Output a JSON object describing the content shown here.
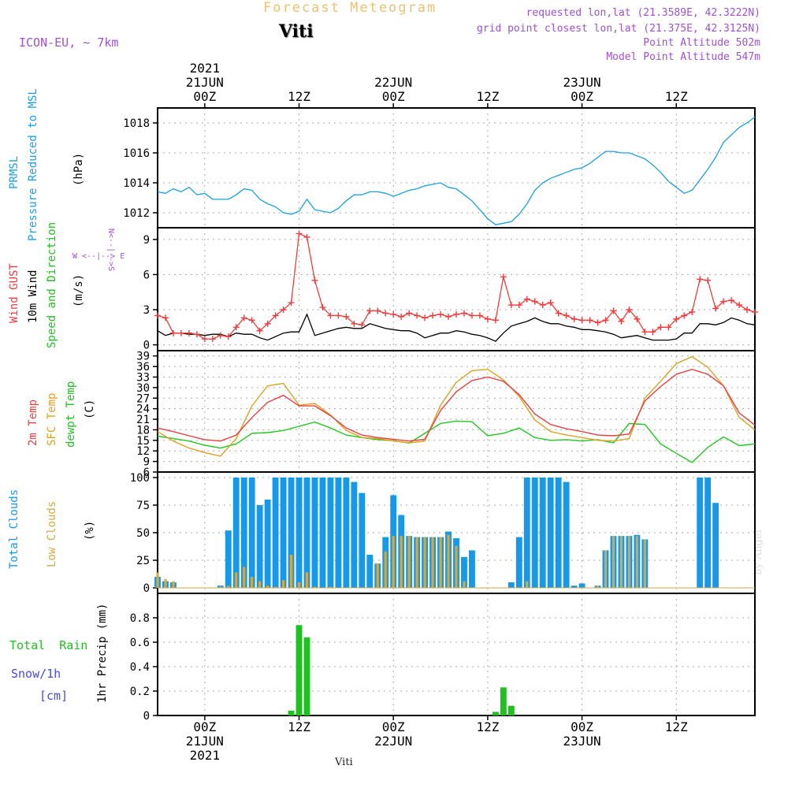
{
  "header": {
    "title": "Forecast Meteogram",
    "location": "Viti",
    "model": "ICON-EU, ~ 7km",
    "requested": "requested lon,lat (21.3589E, 42.3222N)",
    "gridpoint": "grid point closest lon,lat (21.375E, 42.3125N)",
    "point_alt": "Point Altitude 502m",
    "model_alt": "Model Point Altitude 547m",
    "footer": "Viti",
    "watermark": "by Angel"
  },
  "time_axis": {
    "top_labels": [
      {
        "hour": 6,
        "lines": [
          "2021",
          "21JUN",
          "00Z"
        ]
      },
      {
        "hour": 18,
        "lines": [
          "12Z"
        ]
      },
      {
        "hour": 30,
        "lines": [
          "22JUN",
          "00Z"
        ]
      },
      {
        "hour": 42,
        "lines": [
          "12Z"
        ]
      },
      {
        "hour": 54,
        "lines": [
          "23JUN",
          "00Z"
        ]
      },
      {
        "hour": 66,
        "lines": [
          "12Z"
        ]
      }
    ],
    "bottom_labels": [
      {
        "hour": 6,
        "lines": [
          "00Z",
          "21JUN",
          "2021"
        ]
      },
      {
        "hour": 18,
        "lines": [
          "12Z"
        ]
      },
      {
        "hour": 30,
        "lines": [
          "00Z",
          "22JUN"
        ]
      },
      {
        "hour": 42,
        "lines": [
          "12Z"
        ]
      },
      {
        "hour": 54,
        "lines": [
          "00Z",
          "23JUN"
        ]
      },
      {
        "hour": 66,
        "lines": [
          "12Z"
        ]
      }
    ]
  },
  "legend": {
    "pressure": {
      "lines": [
        "PRMSL",
        "Pressure Reduced to MSL"
      ],
      "unit": "(hPa)"
    },
    "wind": {
      "gust": "Wind GUST",
      "wind10": "10m Wind",
      "speed": "Speed and Direction",
      "unit": "(m/s)",
      "compass_ns": "N<--|-->S",
      "compass_we": "W <--|--> E"
    },
    "temp": {
      "t2m": "2m Temp",
      "sfc": "SFC Temp",
      "dew": "dewpt Temp",
      "unit": "(C)"
    },
    "clouds": {
      "total": "Total Clouds",
      "low": "Low Clouds",
      "unit": "(%)"
    },
    "precip": {
      "rain": "Total  Rain",
      "snow": "Snow/1h",
      "snow_unit": "[cm]",
      "ylabel": "1hr Precip (mm)"
    }
  },
  "colors": {
    "pressure": "#1aa0e0",
    "gust": "#f03c3c",
    "wind": "#000000",
    "t2m": "#e84040",
    "sfc": "#e0a020",
    "dew": "#20c820",
    "total_cloud": "#1898e8",
    "low_cloud": "#d8a840",
    "rain": "#20c020",
    "snow": "#4848e8",
    "header_purple": "#a050d0",
    "title_gold": "#f0c070"
  },
  "chart_data": [
    {
      "type": "line",
      "name": "pressure",
      "x": [
        0,
        1,
        2,
        3,
        4,
        5,
        6,
        7,
        8,
        9,
        10,
        11,
        12,
        13,
        14,
        15,
        16,
        17,
        18,
        19,
        20,
        21,
        22,
        23,
        24,
        25,
        26,
        27,
        28,
        29,
        30,
        31,
        32,
        33,
        34,
        35,
        36,
        37,
        38,
        39,
        40,
        41,
        42,
        43,
        44,
        45,
        46,
        47,
        48,
        49,
        50,
        51,
        52,
        53,
        54,
        55,
        56,
        57,
        58,
        59,
        60,
        61,
        62,
        63,
        64,
        65,
        66,
        67,
        68,
        69,
        70,
        71,
        72,
        73,
        74,
        75,
        76
      ],
      "y": [
        1013.4,
        1013.3,
        1013.6,
        1013.4,
        1013.7,
        1013.2,
        1013.3,
        1012.9,
        1012.9,
        1012.9,
        1013.2,
        1013.6,
        1013.5,
        1012.9,
        1012.6,
        1012.4,
        1012.0,
        1011.9,
        1012.1,
        1012.9,
        1012.2,
        1012.1,
        1012.0,
        1012.3,
        1012.8,
        1013.2,
        1013.2,
        1013.4,
        1013.4,
        1013.3,
        1013.1,
        1013.3,
        1013.5,
        1013.6,
        1013.8,
        1013.9,
        1014.0,
        1013.7,
        1013.6,
        1013.2,
        1012.8,
        1012.2,
        1011.6,
        1011.2,
        1011.3,
        1011.4,
        1011.9,
        1012.6,
        1013.5,
        1014.0,
        1014.3,
        1014.5,
        1014.7,
        1014.9,
        1015.0,
        1015.3,
        1015.7,
        1016.1,
        1016.1,
        1016.0,
        1016.0,
        1015.8,
        1015.6,
        1015.2,
        1014.7,
        1014.1,
        1013.7,
        1013.3,
        1013.5,
        1014.2,
        1014.9,
        1015.7,
        1016.7,
        1017.2,
        1017.7,
        1018.0,
        1018.4
      ],
      "ylim": [
        1011,
        1019
      ],
      "yticks": [
        1012,
        1014,
        1016,
        1018
      ]
    },
    {
      "type": "line",
      "name": "wind",
      "x": [
        0,
        1,
        2,
        3,
        4,
        5,
        6,
        7,
        8,
        9,
        10,
        11,
        12,
        13,
        14,
        15,
        16,
        17,
        18,
        19,
        20,
        21,
        22,
        23,
        24,
        25,
        26,
        27,
        28,
        29,
        30,
        31,
        32,
        33,
        34,
        35,
        36,
        37,
        38,
        39,
        40,
        41,
        42,
        43,
        44,
        45,
        46,
        47,
        48,
        49,
        50,
        51,
        52,
        53,
        54,
        55,
        56,
        57,
        58,
        59,
        60,
        61,
        62,
        63,
        64,
        65,
        66,
        67,
        68,
        69,
        70,
        71,
        72,
        73,
        74,
        75,
        76
      ],
      "gust": [
        2.5,
        2.3,
        1.0,
        1.0,
        1.0,
        0.9,
        0.5,
        0.5,
        0.8,
        0.7,
        1.5,
        2.3,
        2.1,
        1.2,
        1.8,
        2.5,
        3.0,
        3.6,
        9.5,
        9.2,
        5.5,
        3.2,
        2.5,
        2.5,
        2.4,
        1.8,
        1.7,
        2.9,
        2.9,
        2.7,
        2.6,
        2.4,
        2.7,
        2.5,
        2.3,
        2.5,
        2.6,
        2.4,
        2.6,
        2.7,
        2.5,
        2.5,
        2.2,
        2.1,
        5.8,
        3.4,
        3.4,
        3.9,
        3.7,
        3.4,
        3.6,
        2.7,
        2.5,
        2.2,
        2.1,
        2.1,
        1.9,
        2.1,
        2.9,
        2.0,
        3.0,
        2.2,
        1.1,
        1.1,
        1.5,
        1.5,
        2.2,
        2.5,
        2.8,
        5.6,
        5.5,
        3.1,
        3.7,
        3.8,
        3.4,
        3.0,
        2.8
      ],
      "wind10": [
        1.2,
        0.8,
        1.0,
        1.0,
        0.9,
        0.9,
        0.8,
        0.9,
        0.9,
        0.7,
        1.0,
        0.9,
        0.9,
        0.6,
        0.4,
        0.7,
        1.0,
        1.1,
        1.1,
        2.6,
        0.8,
        1.0,
        1.2,
        1.4,
        1.5,
        1.4,
        1.4,
        1.8,
        1.6,
        1.4,
        1.3,
        1.2,
        1.2,
        1.0,
        0.6,
        0.8,
        1.0,
        1.0,
        1.2,
        1.1,
        0.9,
        0.8,
        0.6,
        0.3,
        1.0,
        1.6,
        1.8,
        2.0,
        2.3,
        2.0,
        1.8,
        1.8,
        1.6,
        1.5,
        1.3,
        1.3,
        1.2,
        1.1,
        0.9,
        0.6,
        0.7,
        0.8,
        0.6,
        0.4,
        0.4,
        0.4,
        0.5,
        1.0,
        1.0,
        1.8,
        1.8,
        1.7,
        1.9,
        2.3,
        2.1,
        1.8,
        1.7
      ],
      "ylim": [
        -0.5,
        10
      ],
      "yticks": [
        0,
        3,
        6,
        9
      ]
    },
    {
      "type": "line",
      "name": "temperature",
      "x": [
        0,
        2,
        4,
        6,
        8,
        10,
        12,
        14,
        16,
        18,
        20,
        22,
        24,
        26,
        28,
        30,
        32,
        34,
        36,
        38,
        40,
        42,
        44,
        46,
        48,
        50,
        52,
        54,
        56,
        58,
        60,
        62,
        64,
        66,
        68,
        70,
        72,
        74,
        76
      ],
      "t2m": [
        18.5,
        17.5,
        16.3,
        15.2,
        14.8,
        16.5,
        21.5,
        25.8,
        27.8,
        24.8,
        24.8,
        22.0,
        18.5,
        16.5,
        15.8,
        15.3,
        14.8,
        15.3,
        23.5,
        28.8,
        32.0,
        33.0,
        31.8,
        28.0,
        22.5,
        19.5,
        18.3,
        17.5,
        16.5,
        16.3,
        16.8,
        26.2,
        30.3,
        33.8,
        35.2,
        33.8,
        30.5,
        22.8,
        19.3
      ],
      "sfc": [
        17.5,
        14.8,
        12.8,
        11.5,
        10.5,
        15.5,
        24.8,
        30.5,
        31.2,
        25.0,
        25.5,
        22.2,
        17.8,
        15.8,
        15.5,
        14.8,
        14.3,
        14.8,
        25.0,
        31.5,
        34.8,
        35.2,
        32.2,
        27.5,
        20.8,
        17.5,
        16.5,
        15.8,
        15.0,
        14.8,
        15.5,
        27.0,
        31.8,
        36.8,
        38.8,
        35.8,
        30.5,
        21.5,
        18.0
      ],
      "dew": [
        16.2,
        15.5,
        14.8,
        13.6,
        12.8,
        14.0,
        17.0,
        17.2,
        17.8,
        19.0,
        20.2,
        18.5,
        16.5,
        15.8,
        15.2,
        14.9,
        14.2,
        17.0,
        19.8,
        20.5,
        20.3,
        16.3,
        17.0,
        18.5,
        15.8,
        15.0,
        15.2,
        14.8,
        15.2,
        14.3,
        19.8,
        19.5,
        14.0,
        11.3,
        8.7,
        13.0,
        16.0,
        13.5,
        14.0
      ],
      "ylim": [
        6,
        40.5
      ],
      "yticks": [
        6,
        9,
        12,
        15,
        18,
        21,
        24,
        27,
        30,
        33,
        36,
        39
      ]
    },
    {
      "type": "bar",
      "name": "clouds",
      "x": [
        0,
        1,
        2,
        3,
        4,
        5,
        6,
        7,
        8,
        9,
        10,
        11,
        12,
        13,
        14,
        15,
        16,
        17,
        18,
        19,
        20,
        21,
        22,
        23,
        24,
        25,
        26,
        27,
        28,
        29,
        30,
        31,
        32,
        33,
        34,
        35,
        36,
        37,
        38,
        39,
        40,
        41,
        42,
        43,
        44,
        45,
        46,
        47,
        48,
        49,
        50,
        51,
        52,
        53,
        54,
        55,
        56,
        57,
        58,
        59,
        60,
        61,
        62,
        63,
        64,
        65,
        66,
        67,
        68,
        69,
        70,
        71,
        72,
        73,
        74,
        75,
        76
      ],
      "total": [
        10,
        6,
        5,
        0,
        0,
        0,
        0,
        0,
        2,
        52,
        100,
        100,
        100,
        75,
        80,
        100,
        100,
        100,
        100,
        100,
        100,
        100,
        100,
        100,
        100,
        96,
        86,
        30,
        22,
        46,
        84,
        66,
        47,
        46,
        46,
        46,
        46,
        51,
        45,
        28,
        34,
        0,
        0,
        0,
        0,
        5,
        46,
        100,
        100,
        100,
        100,
        100,
        96,
        2,
        4,
        0,
        2,
        34,
        47,
        47,
        47,
        48,
        44,
        0,
        0,
        0,
        0,
        0,
        0,
        100,
        100,
        77,
        0,
        0,
        0,
        0,
        0
      ],
      "low": [
        14,
        8,
        6,
        0,
        0,
        0,
        0,
        0,
        1,
        2,
        14,
        19,
        10,
        6,
        2,
        1,
        7,
        30,
        5,
        14,
        1,
        0,
        1,
        0,
        0,
        0,
        0,
        0,
        22,
        33,
        47,
        47,
        47,
        46,
        46,
        46,
        46,
        48,
        38,
        6,
        0,
        0,
        0,
        0,
        0,
        0,
        0,
        6,
        0,
        0,
        0,
        0,
        0,
        0,
        0,
        0,
        2,
        34,
        47,
        47,
        47,
        47,
        44,
        0,
        0,
        0,
        0,
        0,
        0,
        0,
        0,
        0,
        0,
        0,
        0,
        0,
        0
      ],
      "ylim": [
        -5,
        105
      ],
      "yticks": [
        0,
        25,
        50,
        75,
        100
      ]
    },
    {
      "type": "bar",
      "name": "precipitation",
      "x": [
        17,
        18,
        19,
        43,
        44,
        45
      ],
      "rain": [
        0.04,
        0.74,
        0.64,
        0.03,
        0.23,
        0.08
      ],
      "snow": [],
      "ylim": [
        0,
        1.0
      ],
      "yticks": [
        0,
        0.2,
        0.4,
        0.6,
        0.8
      ]
    }
  ]
}
